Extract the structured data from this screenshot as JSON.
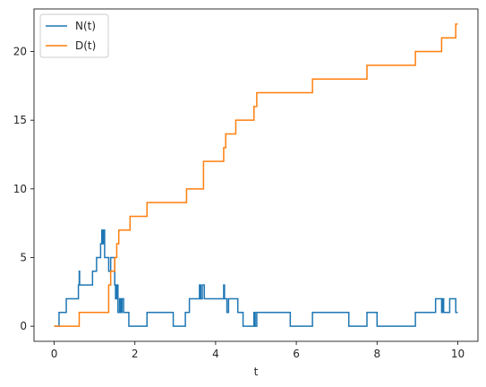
{
  "chart_data": {
    "type": "line",
    "step": "post",
    "xlabel": "t",
    "ylabel": "",
    "xlim": [
      -0.5,
      10.5
    ],
    "ylim": [
      -1.1,
      23.1
    ],
    "xticks": [
      0,
      2,
      4,
      6,
      8,
      10
    ],
    "yticks": [
      0,
      5,
      10,
      15,
      20
    ],
    "grid": false,
    "legend": "top-left",
    "series": [
      {
        "name": "N(t)",
        "color": "#1f77b4",
        "x": [
          0,
          0.12,
          0.3,
          0.6,
          0.62,
          0.63,
          0.95,
          1.05,
          1.15,
          1.18,
          1.2,
          1.22,
          1.25,
          1.35,
          1.4,
          1.5,
          1.52,
          1.55,
          1.58,
          1.62,
          1.65,
          1.68,
          1.72,
          1.85,
          2.3,
          2.95,
          3.25,
          3.35,
          3.6,
          3.63,
          3.67,
          3.72,
          4.2,
          4.22,
          4.28,
          4.32,
          4.55,
          4.68,
          4.95,
          4.98,
          5.02,
          5.85,
          6.4,
          7.3,
          7.75,
          8.0,
          8.95,
          9.45,
          9.6,
          9.63,
          9.65,
          9.8,
          9.95,
          10.0
        ],
        "y": [
          0,
          1,
          2,
          3,
          4,
          3,
          4,
          5,
          6,
          7,
          6,
          7,
          5,
          4,
          5,
          3,
          2,
          3,
          1,
          2,
          1,
          2,
          1,
          0,
          1,
          0,
          1,
          2,
          3,
          2,
          3,
          2,
          3,
          2,
          1,
          2,
          1,
          0,
          1,
          0,
          1,
          0,
          1,
          0,
          1,
          0,
          1,
          2,
          1,
          2,
          1,
          2,
          1,
          1
        ]
      },
      {
        "name": "D(t)",
        "color": "#ff7f0e",
        "x": [
          0,
          0.62,
          1.35,
          1.4,
          1.5,
          1.55,
          1.6,
          1.7,
          1.88,
          2.3,
          3.28,
          3.7,
          4.2,
          4.25,
          4.32,
          4.5,
          4.95,
          5.02,
          6.4,
          7.75,
          8.95,
          9.6,
          9.95,
          10.0
        ],
        "y": [
          0,
          1,
          3,
          4,
          5,
          6,
          7,
          7,
          8,
          9,
          10,
          12,
          13,
          14,
          14,
          15,
          16,
          17,
          18,
          19,
          20,
          21,
          22,
          22
        ]
      }
    ]
  }
}
